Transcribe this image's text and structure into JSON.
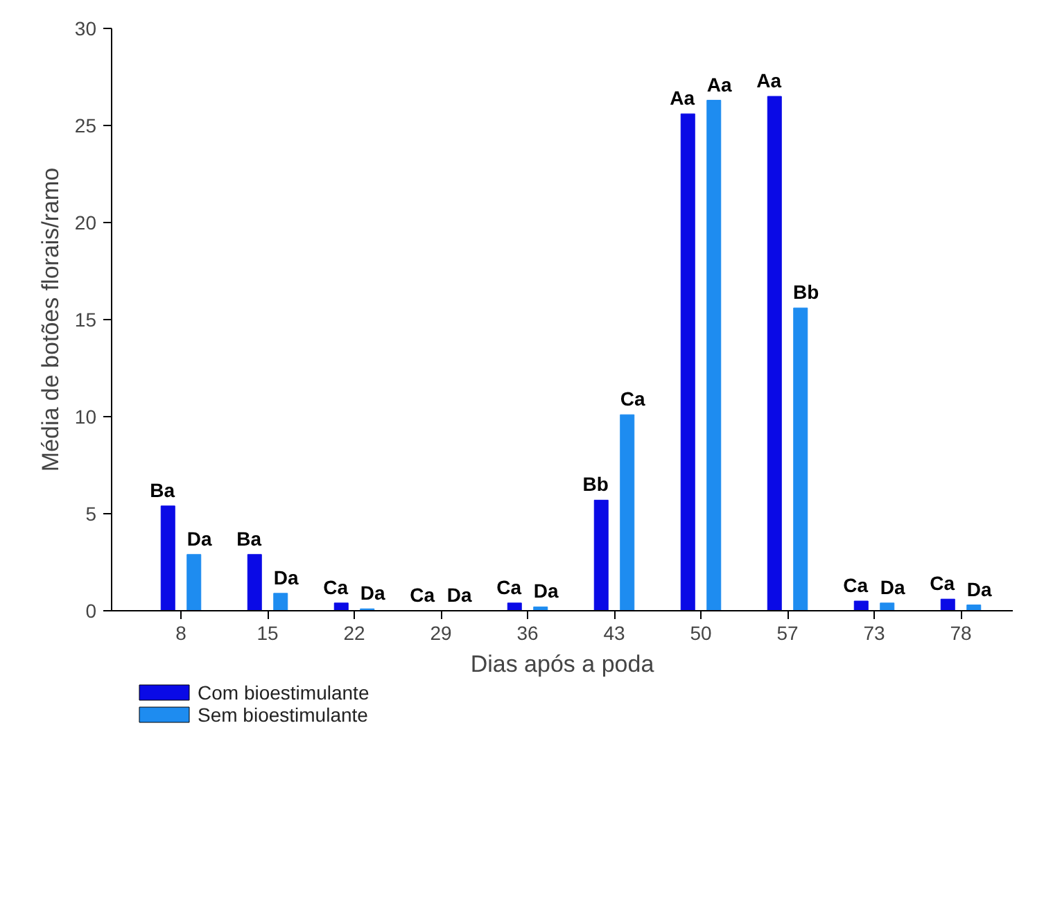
{
  "chart_data": {
    "type": "bar",
    "xlabel": "Dias após a poda",
    "ylabel": "Média de botões florais/ramo",
    "categories": [
      "8",
      "15",
      "22",
      "29",
      "36",
      "43",
      "50",
      "57",
      "73",
      "78"
    ],
    "series": [
      {
        "name": "Com bioestimulante",
        "color": "#0a0ae6",
        "values": [
          5.4,
          2.9,
          0.4,
          0,
          0.4,
          5.7,
          25.6,
          26.5,
          0.5,
          0.6
        ],
        "value_labels": [
          "Ba",
          "Ba",
          "Ca",
          "Ca",
          "Ca",
          "Bb",
          "Aa",
          "Aa",
          "Ca",
          "Ca"
        ]
      },
      {
        "name": "Sem bioestimulante",
        "color": "#1e8cf0",
        "values": [
          2.9,
          0.9,
          0.1,
          0,
          0.2,
          10.1,
          26.3,
          15.6,
          0.4,
          0.3
        ],
        "value_labels": [
          "Da",
          "Da",
          "Da",
          "Da",
          "Da",
          "Ca",
          "Aa",
          "Bb",
          "Da",
          "Da"
        ]
      }
    ],
    "ylim": [
      0,
      30
    ],
    "yticks": [
      0,
      5,
      10,
      15,
      20,
      25,
      30
    ],
    "grid": false,
    "legend": "bottom left"
  }
}
